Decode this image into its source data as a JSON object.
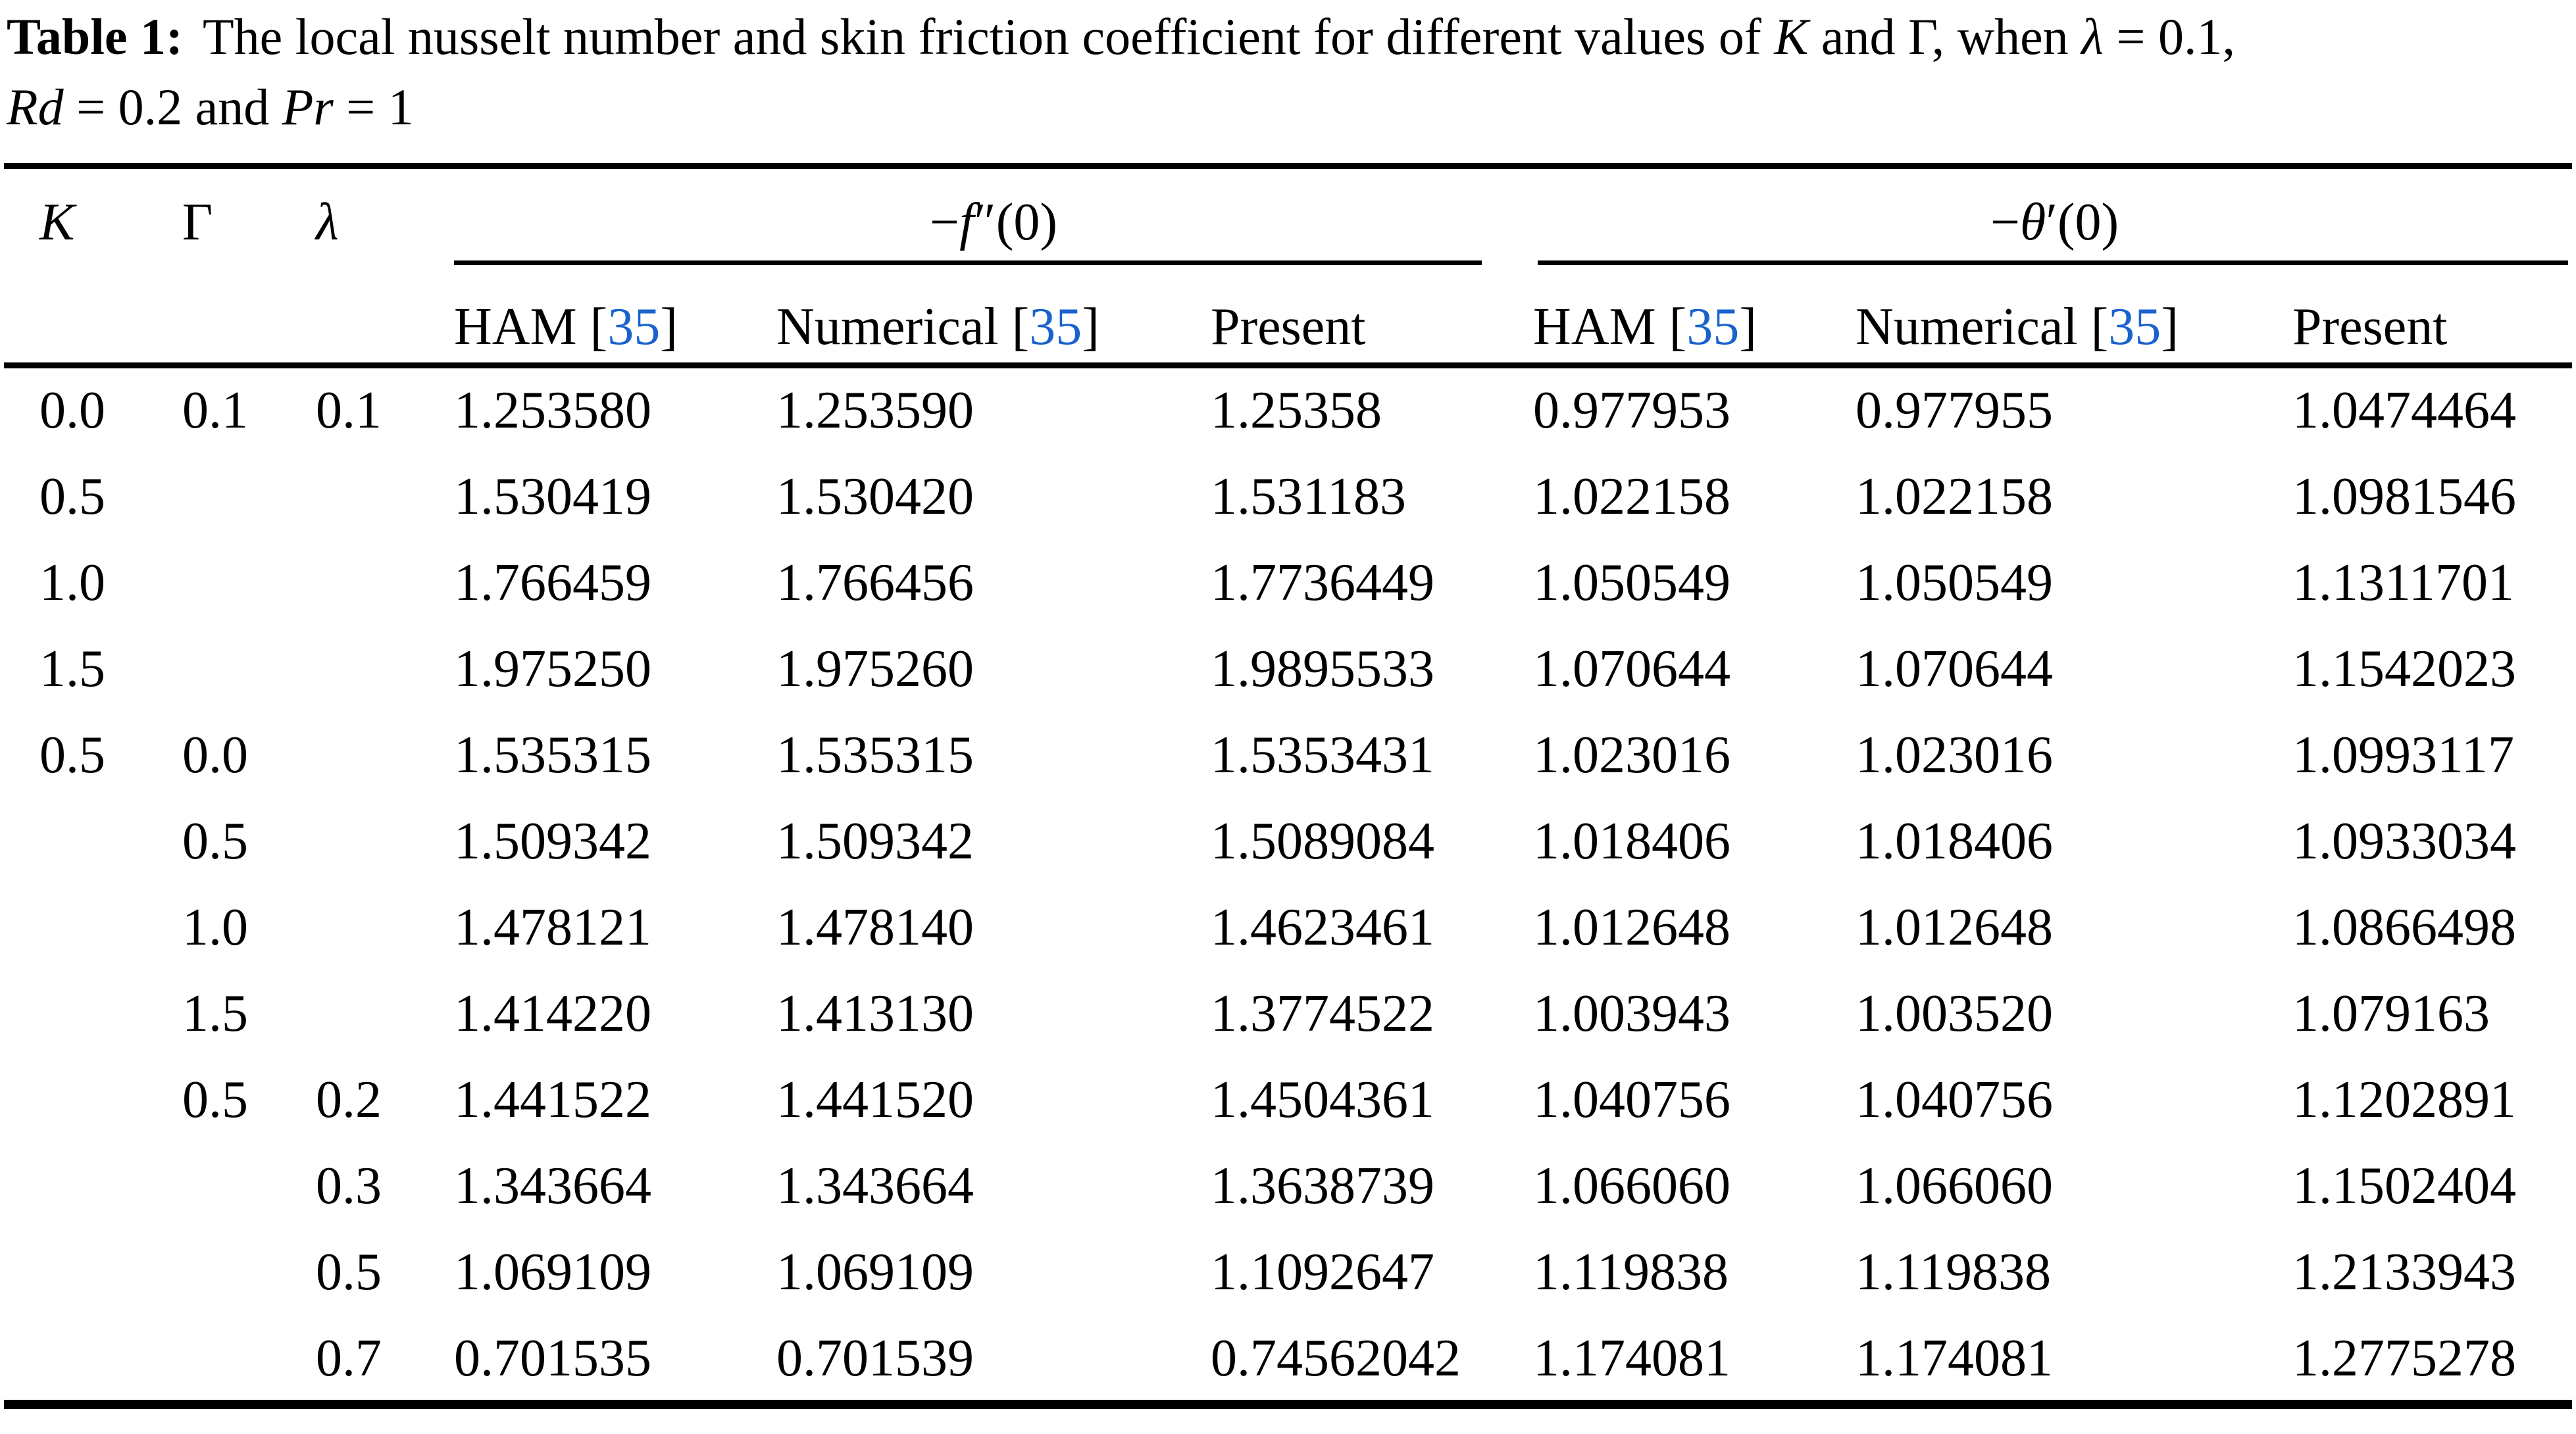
{
  "colors": {
    "reference_blue": "#1a63cc",
    "text_black": "#000000",
    "background": "#ffffff"
  },
  "caption": {
    "label": "Table 1:",
    "t2": "The local nusselt number and skin friction coefficient for different values of ",
    "t3": "K",
    "t4": " and Γ, when ",
    "t5": "λ",
    "t6": " = 0.1,",
    "t7": "Rd",
    "t8": " = 0.2 and ",
    "t9": "Pr",
    "t10": " = 1"
  },
  "header": {
    "k": "K",
    "gamma": "Γ",
    "lambda": "λ",
    "group_f": {
      "minus": "−",
      "sym": "f",
      "rest": "″(0)"
    },
    "group_theta": {
      "minus": "−",
      "sym": "θ",
      "rest": "′(0)"
    },
    "sub": {
      "ham_pre": "HAM [",
      "num_pre": "Numerical [",
      "ref": "35",
      "close": "]",
      "present": "Present"
    }
  },
  "table": {
    "rows": [
      [
        "0.0",
        "0.1",
        "0.1",
        "1.253580",
        "1.253590",
        "1.25358",
        "0.977953",
        "0.977955",
        "1.0474464"
      ],
      [
        "0.5",
        "",
        "",
        "1.530419",
        "1.530420",
        "1.531183",
        "1.022158",
        "1.022158",
        "1.0981546"
      ],
      [
        "1.0",
        "",
        "",
        "1.766459",
        "1.766456",
        "1.7736449",
        "1.050549",
        "1.050549",
        "1.1311701"
      ],
      [
        "1.5",
        "",
        "",
        "1.975250",
        "1.975260",
        "1.9895533",
        "1.070644",
        "1.070644",
        "1.1542023"
      ],
      [
        "0.5",
        "0.0",
        "",
        "1.535315",
        "1.535315",
        "1.5353431",
        "1.023016",
        "1.023016",
        "1.0993117"
      ],
      [
        "",
        "0.5",
        "",
        "1.509342",
        "1.509342",
        "1.5089084",
        "1.018406",
        "1.018406",
        "1.0933034"
      ],
      [
        "",
        "1.0",
        "",
        "1.478121",
        "1.478140",
        "1.4623461",
        "1.012648",
        "1.012648",
        "1.0866498"
      ],
      [
        "",
        "1.5",
        "",
        "1.414220",
        "1.413130",
        "1.3774522",
        "1.003943",
        "1.003520",
        "1.079163"
      ],
      [
        "",
        "0.5",
        "0.2",
        "1.441522",
        "1.441520",
        "1.4504361",
        "1.040756",
        "1.040756",
        "1.1202891"
      ],
      [
        "",
        "",
        "0.3",
        "1.343664",
        "1.343664",
        "1.3638739",
        "1.066060",
        "1.066060",
        "1.1502404"
      ],
      [
        "",
        "",
        "0.5",
        "1.069109",
        "1.069109",
        "1.1092647",
        "1.119838",
        "1.119838",
        "1.2133943"
      ],
      [
        "",
        "",
        "0.7",
        "0.701535",
        "0.701539",
        "0.74562042",
        "1.174081",
        "1.174081",
        "1.2775278"
      ]
    ]
  }
}
